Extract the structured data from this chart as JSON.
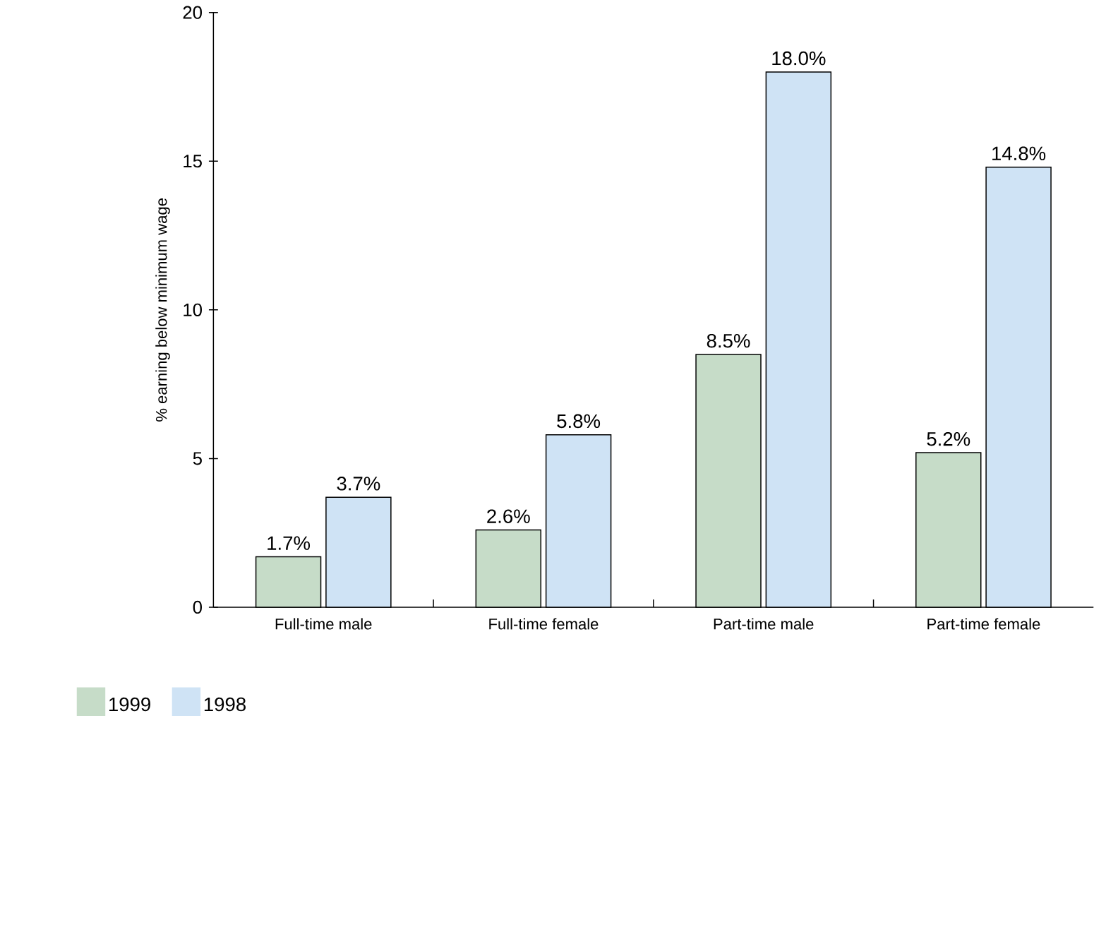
{
  "chart_data": {
    "type": "bar",
    "ylabel": "% earning below minimum wage",
    "categories": [
      "Full-time male",
      "Full-time female",
      "Part-time male",
      "Part-time female"
    ],
    "series": [
      {
        "name": "1999",
        "color": "#c6dcc8",
        "values": [
          1.7,
          2.6,
          8.5,
          5.2
        ],
        "value_labels": [
          "1.7%",
          "2.6%",
          "8.5%",
          "5.2%"
        ]
      },
      {
        "name": "1998",
        "color": "#cfe3f5",
        "values": [
          3.7,
          5.8,
          18.0,
          14.8
        ],
        "value_labels": [
          "3.7%",
          "5.8%",
          "18.0%",
          "14.8%"
        ]
      }
    ],
    "ylim": [
      0,
      20
    ],
    "yticks": [
      0,
      5,
      10,
      15,
      20
    ],
    "grid": false,
    "legend": "bottom left"
  }
}
